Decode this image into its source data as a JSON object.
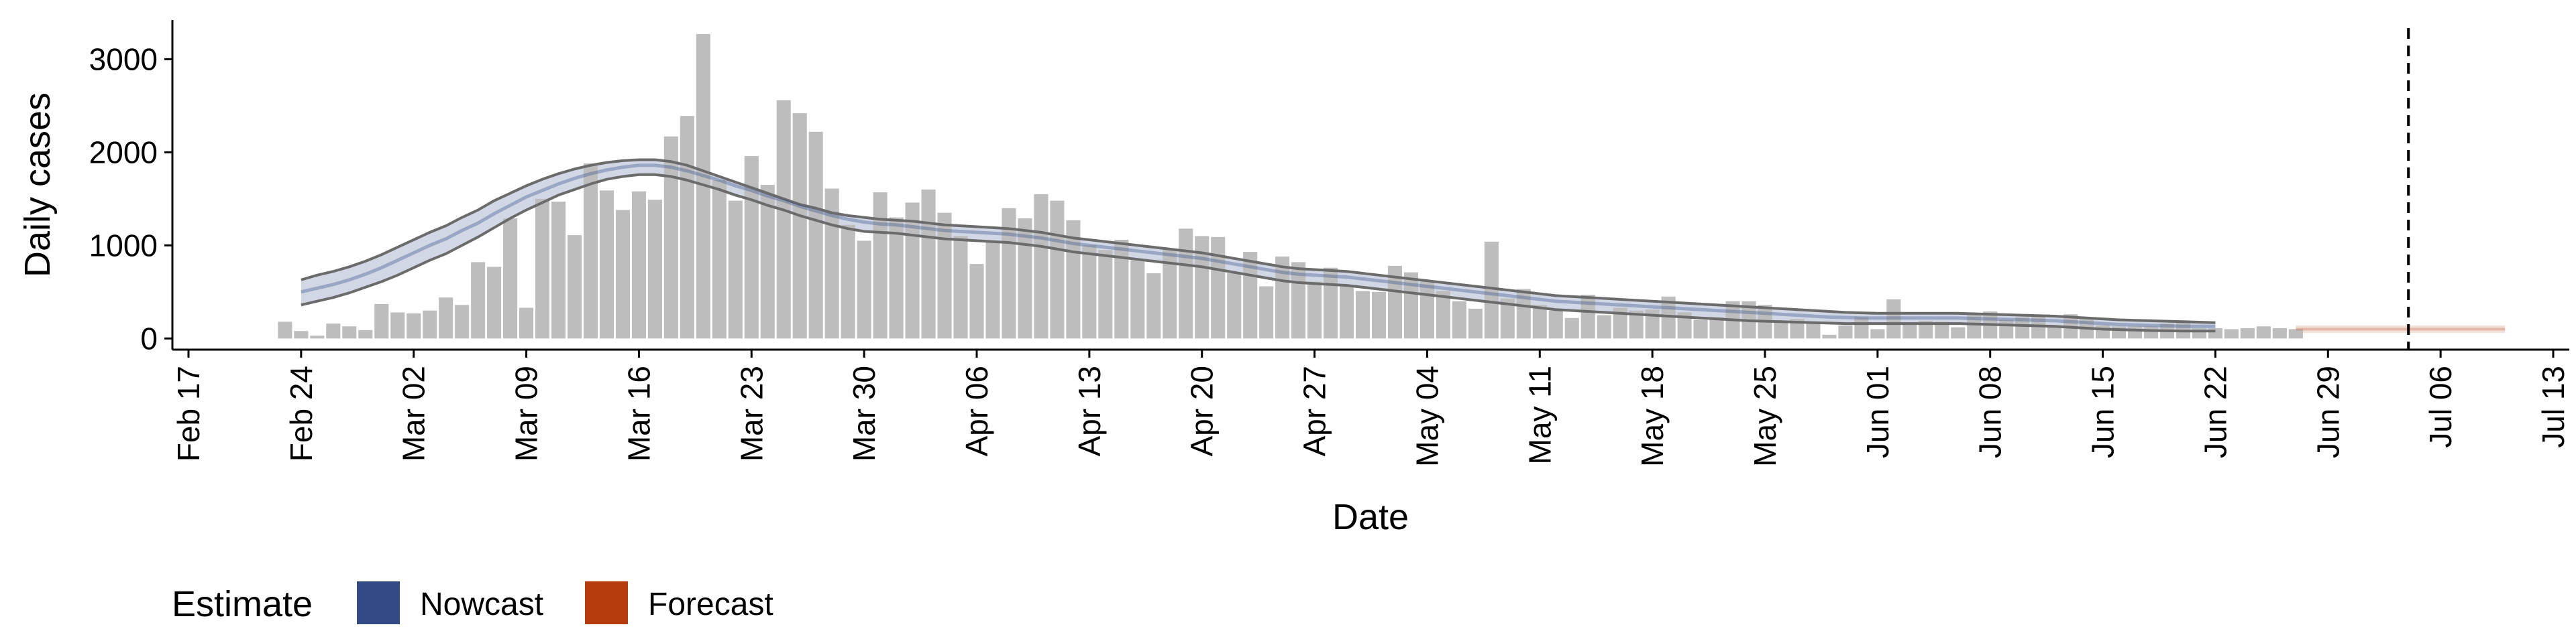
{
  "chart_data": {
    "type": "bar",
    "xlabel": "Date",
    "ylabel": "Daily cases",
    "ylim": [
      -120,
      3420
    ],
    "xlim": [
      "2020-02-16",
      "2020-07-14"
    ],
    "y_ticks": [
      0,
      1000,
      2000,
      3000
    ],
    "x_ticks": [
      "2020-02-17",
      "2020-02-24",
      "2020-03-02",
      "2020-03-09",
      "2020-03-16",
      "2020-03-23",
      "2020-03-30",
      "2020-04-06",
      "2020-04-13",
      "2020-04-20",
      "2020-04-27",
      "2020-05-04",
      "2020-05-11",
      "2020-05-18",
      "2020-05-25",
      "2020-06-01",
      "2020-06-08",
      "2020-06-15",
      "2020-06-22",
      "2020-06-29",
      "2020-07-06",
      "2020-07-13"
    ],
    "x_tick_labels": [
      "Feb 17",
      "Feb 24",
      "Mar 02",
      "Mar 09",
      "Mar 16",
      "Mar 23",
      "Mar 30",
      "Apr 06",
      "Apr 13",
      "Apr 20",
      "Apr 27",
      "May 04",
      "May 11",
      "May 18",
      "May 25",
      "Jun 01",
      "Jun 08",
      "Jun 15",
      "Jun 22",
      "Jun 29",
      "Jul 06",
      "Jul 13"
    ],
    "bar_start_date": "2020-02-23",
    "reported_cases": [
      180,
      80,
      30,
      160,
      130,
      90,
      370,
      280,
      270,
      300,
      440,
      360,
      820,
      770,
      1290,
      330,
      1500,
      1470,
      1110,
      1880,
      1590,
      1380,
      1580,
      1490,
      2170,
      2390,
      3270,
      1700,
      1480,
      1960,
      1650,
      2560,
      2420,
      2220,
      1610,
      1220,
      1050,
      1570,
      1300,
      1460,
      1600,
      1350,
      1100,
      800,
      1040,
      1400,
      1290,
      1550,
      1480,
      1270,
      1000,
      950,
      1060,
      840,
      700,
      960,
      1180,
      1100,
      1090,
      700,
      930,
      560,
      880,
      820,
      610,
      760,
      560,
      510,
      500,
      780,
      710,
      610,
      510,
      400,
      320,
      1040,
      430,
      530,
      360,
      300,
      220,
      470,
      250,
      330,
      300,
      310,
      450,
      280,
      200,
      230,
      400,
      400,
      360,
      190,
      210,
      160,
      40,
      140,
      230,
      100,
      420,
      160,
      190,
      180,
      120,
      260,
      290,
      200,
      230,
      250,
      120,
      260,
      220,
      140,
      130,
      130,
      130,
      160,
      170,
      110,
      110,
      100,
      110,
      130,
      110,
      100
    ],
    "series": [
      {
        "name": "Nowcast",
        "start_date": "2020-02-24",
        "median": [
          500,
          540,
          580,
          630,
          690,
          760,
          840,
          920,
          1000,
          1070,
          1160,
          1240,
          1340,
          1430,
          1520,
          1590,
          1660,
          1720,
          1770,
          1810,
          1840,
          1860,
          1860,
          1840,
          1800,
          1750,
          1700,
          1640,
          1590,
          1530,
          1480,
          1420,
          1370,
          1320,
          1280,
          1250,
          1230,
          1220,
          1200,
          1180,
          1160,
          1150,
          1140,
          1130,
          1120,
          1100,
          1080,
          1050,
          1020,
          1000,
          980,
          960,
          940,
          920,
          900,
          880,
          860,
          830,
          800,
          770,
          740,
          710,
          690,
          680,
          670,
          660,
          640,
          620,
          600,
          580,
          560,
          540,
          520,
          500,
          480,
          460,
          440,
          420,
          400,
          390,
          380,
          370,
          360,
          350,
          340,
          330,
          320,
          310,
          300,
          290,
          280,
          270,
          260,
          250,
          240,
          230,
          225,
          220,
          220,
          220,
          220,
          220,
          220,
          220,
          215,
          210,
          205,
          200,
          195,
          190,
          180,
          170,
          160,
          150,
          145,
          140,
          135,
          130,
          130,
          130
        ],
        "lower": [
          360,
          400,
          440,
          490,
          550,
          610,
          680,
          760,
          840,
          910,
          1000,
          1090,
          1190,
          1290,
          1380,
          1460,
          1540,
          1600,
          1660,
          1710,
          1740,
          1760,
          1760,
          1740,
          1700,
          1650,
          1600,
          1540,
          1490,
          1430,
          1380,
          1320,
          1270,
          1220,
          1180,
          1150,
          1140,
          1130,
          1110,
          1090,
          1070,
          1060,
          1050,
          1040,
          1030,
          1010,
          990,
          960,
          930,
          910,
          890,
          870,
          850,
          830,
          810,
          790,
          770,
          740,
          710,
          680,
          650,
          620,
          600,
          590,
          580,
          570,
          550,
          530,
          510,
          490,
          470,
          450,
          430,
          410,
          390,
          370,
          350,
          330,
          310,
          300,
          290,
          280,
          270,
          260,
          250,
          240,
          230,
          220,
          210,
          200,
          190,
          185,
          180,
          175,
          170,
          165,
          160,
          160,
          160,
          160,
          160,
          160,
          160,
          160,
          155,
          150,
          145,
          140,
          135,
          130,
          120,
          110,
          100,
          95,
          90,
          85,
          82,
          80,
          80,
          80
        ],
        "upper": [
          630,
          680,
          720,
          770,
          830,
          900,
          980,
          1060,
          1140,
          1210,
          1300,
          1380,
          1480,
          1560,
          1640,
          1710,
          1770,
          1820,
          1860,
          1890,
          1910,
          1920,
          1920,
          1900,
          1860,
          1800,
          1740,
          1680,
          1620,
          1560,
          1500,
          1440,
          1400,
          1350,
          1320,
          1300,
          1280,
          1270,
          1260,
          1240,
          1220,
          1210,
          1200,
          1190,
          1180,
          1160,
          1140,
          1110,
          1080,
          1060,
          1040,
          1020,
          1000,
          980,
          960,
          940,
          920,
          890,
          860,
          830,
          800,
          770,
          750,
          740,
          730,
          720,
          700,
          680,
          660,
          640,
          620,
          600,
          580,
          560,
          540,
          520,
          500,
          480,
          460,
          450,
          440,
          430,
          420,
          410,
          400,
          390,
          380,
          370,
          360,
          350,
          340,
          330,
          320,
          310,
          300,
          290,
          280,
          275,
          270,
          270,
          270,
          270,
          270,
          270,
          265,
          260,
          255,
          250,
          245,
          240,
          230,
          220,
          210,
          200,
          195,
          190,
          185,
          180,
          175,
          170
        ]
      },
      {
        "name": "Forecast",
        "start_date": "2020-06-27",
        "median": [
          100,
          100,
          100,
          100,
          100,
          100,
          100,
          100,
          100,
          100,
          100,
          100,
          100,
          100
        ],
        "lower": [
          60,
          60,
          60,
          60,
          60,
          60,
          60,
          60,
          60,
          60,
          60,
          60,
          60,
          60
        ],
        "upper": [
          140,
          140,
          140,
          140,
          140,
          140,
          140,
          140,
          140,
          140,
          140,
          140,
          140,
          140
        ]
      }
    ],
    "reference_line_date": "2020-07-04",
    "legend": {
      "title": "Estimate",
      "placement": "bottom",
      "items": [
        {
          "label": "Nowcast",
          "color": "#324b87"
        },
        {
          "label": "Forecast",
          "color": "#b43c0c"
        }
      ]
    },
    "colors": {
      "bars": "#bdbdbd",
      "nowcast": "#324b87",
      "forecast": "#b43c0c",
      "outline": "#6b6b6b",
      "reference_line": "#000000"
    }
  }
}
